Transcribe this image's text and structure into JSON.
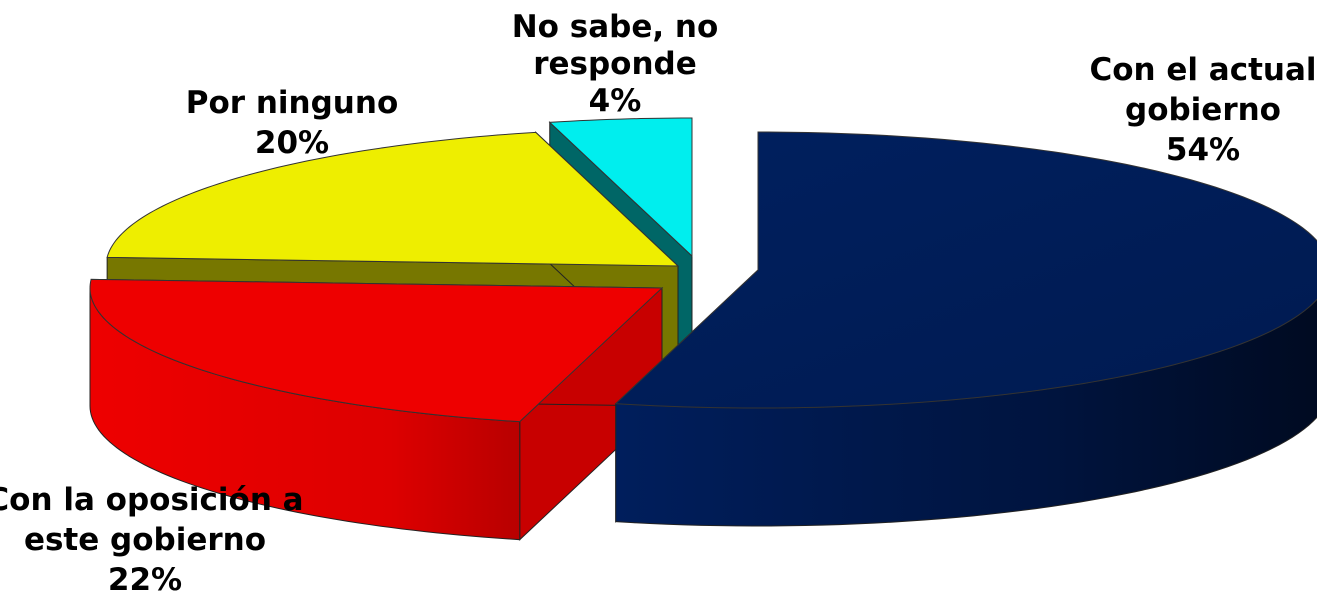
{
  "chart_data": {
    "type": "pie",
    "style": "3d-exploded",
    "title": "",
    "slices": [
      {
        "label_lines": [
          "Con el actual",
          "gobierno"
        ],
        "value": 54,
        "value_label": "54%",
        "color": "#001E5C",
        "side_color": "#001540"
      },
      {
        "label_lines": [
          "Con la oposición a",
          "este gobierno"
        ],
        "value": 22,
        "value_label": "22%",
        "color": "#EE0000",
        "side_color": "#C80000"
      },
      {
        "label_lines": [
          "Por ninguno"
        ],
        "value": 20,
        "value_label": "20%",
        "color": "#EEEE00",
        "side_color": "#777700"
      },
      {
        "label_lines": [
          "No sabe, no",
          "responde"
        ],
        "value": 4,
        "value_label": "4%",
        "color": "#00EEEE",
        "side_color": "#006666"
      }
    ]
  }
}
